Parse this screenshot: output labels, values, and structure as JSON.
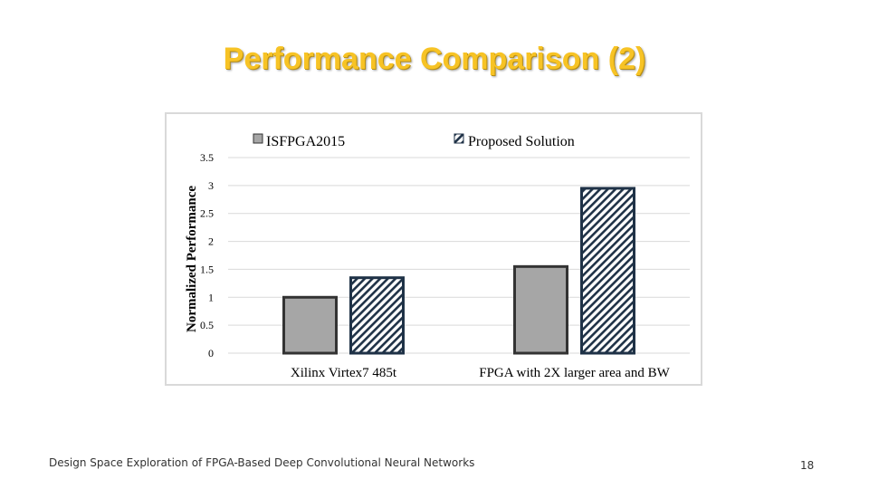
{
  "slide": {
    "title": "Performance Comparison (2)",
    "footer": "Design Space Exploration of FPGA-Based Deep Convolutional Neural Networks",
    "page_number": "18"
  },
  "colors": {
    "title": "#F7C325",
    "bar_fill": "#a6a6a6",
    "bar_border": "#333333",
    "hatch_border": "#1f3247",
    "gridline": "#d9d9d9"
  },
  "chart_data": {
    "type": "bar",
    "categories": [
      "Xilinx Virtex7 485t",
      "FPGA with 2X larger area and BW"
    ],
    "series": [
      {
        "name": "ISFPGA2015",
        "values": [
          1.0,
          1.55
        ],
        "pattern": "solid"
      },
      {
        "name": "Proposed Solution",
        "values": [
          1.35,
          2.95
        ],
        "pattern": "hatched"
      }
    ],
    "title": "",
    "xlabel": "",
    "ylabel": "Normalized Performance",
    "ylim": [
      0,
      3.5
    ],
    "yticks": [
      "0",
      "0.5",
      "1",
      "1.5",
      "2",
      "2.5",
      "3",
      "3.5"
    ],
    "grid": true,
    "legend_position": "top"
  }
}
